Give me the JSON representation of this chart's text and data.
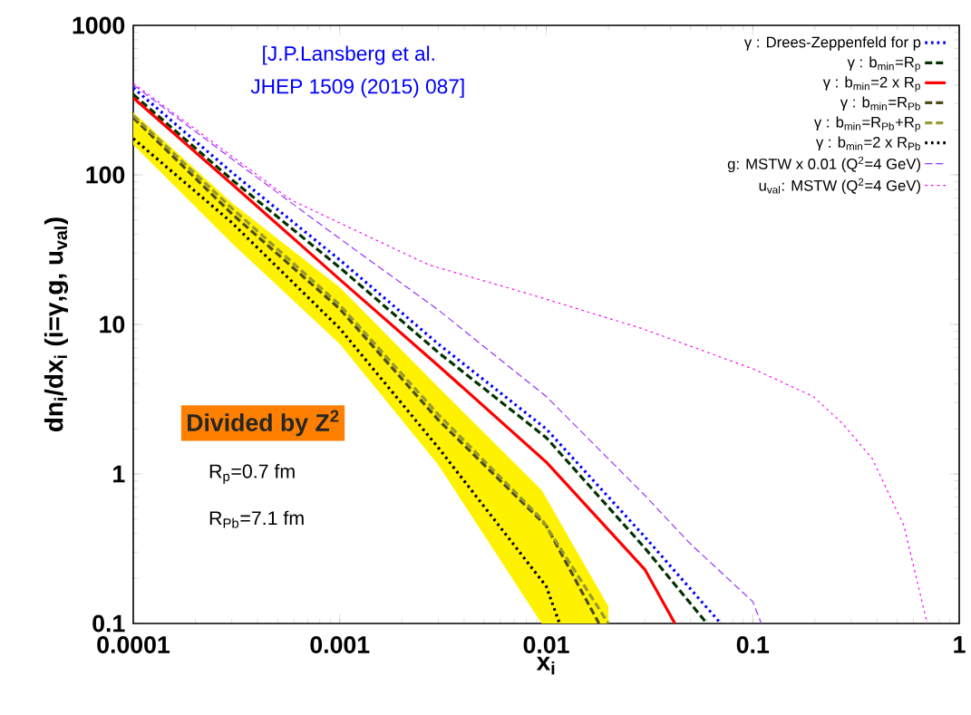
{
  "chart_data": {
    "type": "line",
    "log": "xy",
    "xlabel": "x$_{i}$",
    "ylabel": "dn$_{i}$/dx$_{i}$  (i=γ,g, u$_{val}$)",
    "xlim": [
      0.0001,
      1
    ],
    "ylim": [
      0.1,
      1000
    ],
    "xticks": [
      0.0001,
      0.001,
      0.01,
      0.1,
      1
    ],
    "yticks": [
      0.1,
      1,
      10,
      100,
      1000
    ],
    "legend": "top right",
    "grid": false,
    "annotations": [
      "[J.P.Lansberg et al.",
      "JHEP 1509 (2015) 087]",
      "Divided by Z$^{2}$",
      "R$_{p}$=0.7 fm",
      "R$_{Pb}$=7.1 fm"
    ],
    "series": [
      {
        "name": "γ : Drees-Zeppenfeld for p",
        "color": "#0000ff",
        "line_style": "dotted",
        "x": [
          0.0001,
          0.0003,
          0.001,
          0.003,
          0.01,
          0.03,
          0.07
        ],
        "values": [
          382,
          104,
          27,
          7.4,
          2.0,
          0.38,
          0.1
        ]
      },
      {
        "name": "γ : b$_{min}$=R$_{p}$",
        "color": "#003300",
        "line_style": "dashed",
        "x": [
          0.0001,
          0.0003,
          0.001,
          0.003,
          0.01,
          0.03,
          0.06
        ],
        "values": [
          345,
          93,
          24,
          6.5,
          1.75,
          0.32,
          0.1
        ]
      },
      {
        "name": "γ : b$_{min}$=2 x R$_{p}$",
        "color": "#ff0000",
        "line_style": "solid",
        "x": [
          0.0001,
          0.0003,
          0.001,
          0.003,
          0.01,
          0.03,
          0.042
        ],
        "values": [
          328,
          87,
          20,
          5.3,
          1.2,
          0.23,
          0.1
        ]
      },
      {
        "name": "γ : b$_{min}$=R$_{Pb}$",
        "color": "#4d4d1a",
        "line_style": "dashed",
        "x": [
          0.0001,
          0.0003,
          0.001,
          0.003,
          0.01,
          0.018
        ],
        "values": [
          241,
          55,
          12.7,
          2.3,
          0.45,
          0.1
        ]
      },
      {
        "name": "γ : b$_{min}$=R$_{Pb}$+R$_{p}$",
        "color": "#999933",
        "line_style": "dashed",
        "x": [
          0.0001,
          0.0003,
          0.001,
          0.003,
          0.0095,
          0.02
        ],
        "values": [
          250,
          60,
          13.5,
          2.5,
          0.5,
          0.1
        ],
        "lower": [
          159,
          35,
          7.4,
          1.15,
          0.1,
          0.1
        ],
        "upper": [
          262,
          65,
          17.7,
          3.8,
          0.78,
          0.13
        ]
      },
      {
        "name": "γ : b$_{min}$=2 x R$_{Pb}$",
        "color": "#000000",
        "line_style": "dotted",
        "x": [
          0.0001,
          0.0003,
          0.001,
          0.003,
          0.01,
          0.0116
        ],
        "values": [
          175,
          48,
          9.4,
          1.5,
          0.177,
          0.1
        ]
      },
      {
        "name": "g: MSTW x 0.01 (Q$^{2}$=4 GeV)",
        "color": "#9933ff",
        "line_style": "dashed",
        "x": [
          0.0001,
          0.0003,
          0.001,
          0.003,
          0.01,
          0.03,
          0.05,
          0.1,
          0.11
        ],
        "values": [
          400,
          128,
          37.5,
          12.5,
          3.3,
          0.72,
          0.34,
          0.14,
          0.1
        ]
      },
      {
        "name": "u$_{val}$: MSTW  (Q$^{2}$=4 GeV)",
        "color": "#ff00ff",
        "line_style": "dotted",
        "x": [
          0.0001,
          0.00058,
          0.0027,
          0.008,
          0.029,
          0.102,
          0.196,
          0.27,
          0.38,
          0.54,
          0.7
        ],
        "values": [
          410,
          68,
          25,
          16.2,
          9.4,
          5.0,
          3.3,
          2.2,
          1.26,
          0.45,
          0.1
        ]
      }
    ]
  }
}
